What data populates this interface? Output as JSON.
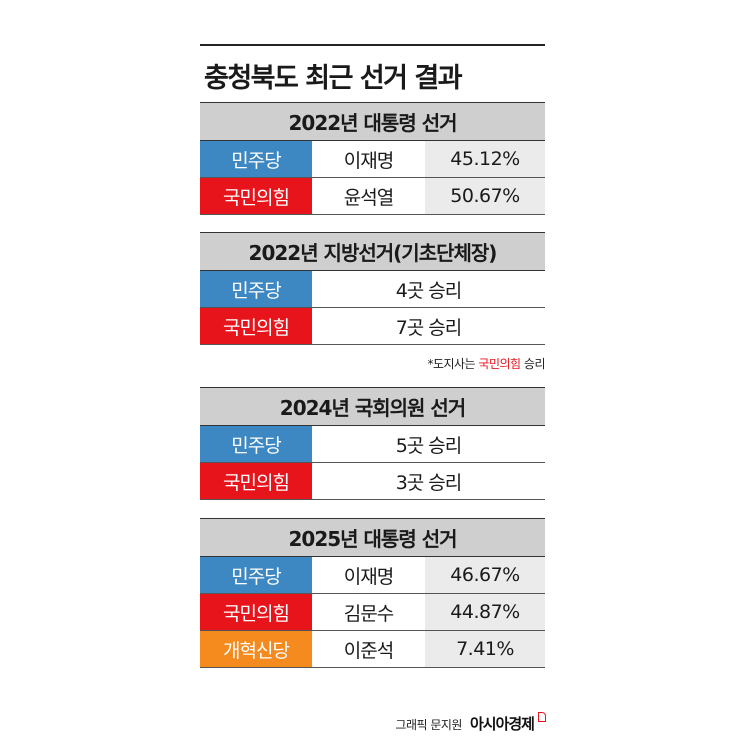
{
  "title": "충청북도 최근 선거 결과",
  "colors": {
    "democratic": "#3d88c2",
    "ppp": "#e8141c",
    "reform": "#f58a1f",
    "header_bg": "#cfcfcf",
    "pct_bg": "#ebebeb"
  },
  "sections": [
    {
      "header": "2022년 대통령 선거",
      "rows": [
        {
          "party": "민주당",
          "candidate": "이재명",
          "value": "45.12%"
        },
        {
          "party": "국민의힘",
          "candidate": "윤석열",
          "value": "50.67%"
        }
      ]
    },
    {
      "header": "2022년 지방선거(기초단체장)",
      "rows": [
        {
          "party": "민주당",
          "result": "4곳 승리"
        },
        {
          "party": "국민의힘",
          "result": "7곳 승리"
        }
      ],
      "note": {
        "prefix": "*도지사는 ",
        "highlight": "국민의힘",
        "suffix": " 승리"
      }
    },
    {
      "header": "2024년 국회의원 선거",
      "rows": [
        {
          "party": "민주당",
          "result": "5곳 승리"
        },
        {
          "party": "국민의힘",
          "result": "3곳 승리"
        }
      ]
    },
    {
      "header": "2025년 대통령 선거",
      "rows": [
        {
          "party": "민주당",
          "candidate": "이재명",
          "value": "46.67%"
        },
        {
          "party": "국민의힘",
          "candidate": "김문수",
          "value": "44.87%"
        },
        {
          "party": "개혁신당",
          "candidate": "이준석",
          "value": "7.41%"
        }
      ]
    }
  ],
  "footer": {
    "credit": "그래픽 문지원",
    "brand": "아시아경제"
  }
}
